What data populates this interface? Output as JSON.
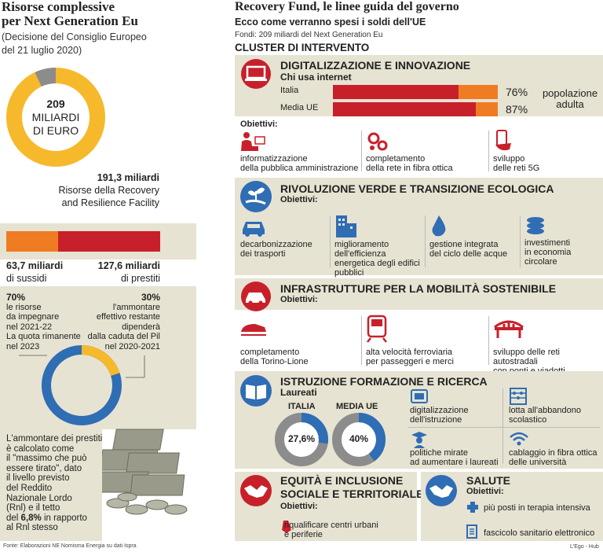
{
  "left": {
    "title_line1": "Risorse complessive",
    "title_line2": "per Next Generation Eu",
    "subtitle_line1": "(Decisione del Consiglio Europeo",
    "subtitle_line2": "del 21 luglio 2020)",
    "donut_number": "209",
    "donut_label1": "MILIARDI",
    "donut_label2": "DI EURO",
    "rrf_value": "191,3 miliardi",
    "rrf_label1": "Risorse della Recovery",
    "rrf_label2": "and Resilience Facility",
    "sussidi_value": "63,7 miliardi",
    "sussidi_label": "di sussidi",
    "prestiti_value": "127,6 miliardi",
    "prestiti_label": "di prestiti",
    "pct70": "70%",
    "pct70_text": [
      "le risorse",
      "da impegnare",
      "nel 2021-22",
      "La quota rimanente",
      "nel 2023"
    ],
    "pct30": "30%",
    "pct30_text": [
      "l'ammontare",
      "effettivo restante",
      "dipenderà",
      "dalla caduta del Pil",
      "nel 2020-2021"
    ],
    "loan_text": [
      "L'ammontare dei prestiti",
      "è calcolato come",
      "il \"massimo che può",
      "essere tirato\", dato",
      "il livello previsto",
      "del Reddito",
      "Nazionale Lordo",
      "(Rnl) e il tetto"
    ],
    "loan_text_last_pre": "del ",
    "loan_text_bold": "6,8%",
    "loan_text_last_post": " in rapporto",
    "loan_text_end": "al Rnl stesso",
    "source": "Fonte: Elaborazioni NE Nomisma Energia su dati Ispra"
  },
  "right": {
    "title": "Recovery Fund, le linee guida del governo",
    "subtitle": "Ecco come verranno spesi i soldi dell'UE",
    "fondi": "Fondi: 209 miliardi del Next Generation Eu",
    "cluster": "CLUSTER DI INTERVENTO",
    "obiettivi": "Obiettivi:",
    "digital": {
      "title": "DIGITALIZZAZIONE E INNOVAZIONE",
      "chi": "Chi usa internet",
      "italia": "Italia",
      "ue": "Media UE",
      "italia_pct": "76%",
      "ue_pct": "87%",
      "pop1": "popolazione",
      "pop2": "adulta",
      "items": [
        [
          "informatizzazione",
          "della pubblica amministrazione"
        ],
        [
          "completamento",
          "della rete in fibra ottica"
        ],
        [
          "sviluppo",
          "delle reti 5G"
        ]
      ]
    },
    "verde": {
      "title": "RIVOLUZIONE VERDE E TRANSIZIONE ECOLOGICA",
      "items": [
        [
          "decarbonizzazione",
          "dei trasporti"
        ],
        [
          "miglioramento",
          "dell'efficienza",
          "energetica degli edifici",
          "pubblici"
        ],
        [
          "gestione integrata",
          "del ciclo delle acque"
        ],
        [
          "investimenti",
          "in economia",
          "circolare"
        ]
      ]
    },
    "infra": {
      "title": "INFRASTRUTTURE PER LA MOBILITÀ SOSTENIBILE",
      "items": [
        [
          "completamento",
          "della Torino-Lione"
        ],
        [
          "alta velocità ferroviaria",
          "per passeggeri e merci"
        ],
        [
          "sviluppo delle reti autostradali",
          "con ponti e viadotti"
        ]
      ]
    },
    "istruzione": {
      "title": "ISTRUZIONE FORMAZIONE E RICERCA",
      "laureati": "Laureati",
      "italia": "ITALIA",
      "ue": "MEDIA UE",
      "italia_pct": "27,6%",
      "ue_pct": "40%",
      "items": [
        [
          "digitalizzazione",
          "dell'istruzione"
        ],
        [
          "lotta all'abbandono",
          "scolastico"
        ],
        [
          "politiche mirate",
          "ad aumentare i laureati"
        ],
        [
          "cablaggio in fibra ottica",
          "delle università"
        ]
      ]
    },
    "equita": {
      "title1": "EQUITÀ E INCLUSIONE",
      "title2": "SOCIALE E TERRITORIALE",
      "item": [
        "riqualificare centri urbani",
        "e periferie"
      ]
    },
    "salute": {
      "title": "SALUTE",
      "items": [
        "più posti in terapia intensiva",
        "fascicolo sanitario elettronico"
      ]
    },
    "credit": "L'Ego - Hub"
  },
  "colors": {
    "red": "#c8202a",
    "orange": "#ef7c22",
    "yellow": "#f6b92b",
    "blue": "#2f6db5",
    "grey": "#8c8c8c",
    "beige": "#e6e3d2"
  }
}
